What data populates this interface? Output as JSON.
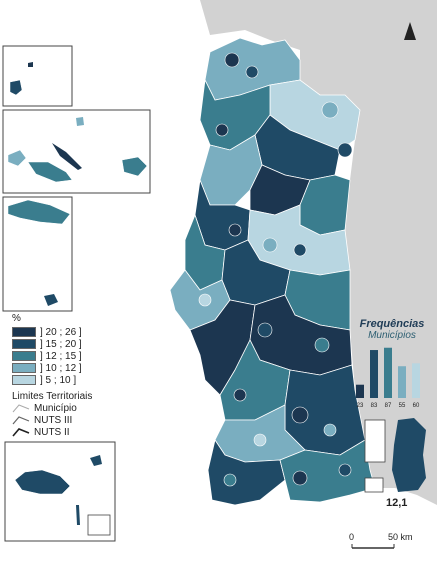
{
  "legend": {
    "title": "%",
    "classes": [
      {
        "label": "] 20 ; 26 ]",
        "color": "#1c3650"
      },
      {
        "label": "] 15 ; 20 ]",
        "color": "#1f4a66"
      },
      {
        "label": "] 12 ; 15 ]",
        "color": "#3a7d8e"
      },
      {
        "label": "] 10 ; 12 ]",
        "color": "#7aaec0"
      },
      {
        "label": "] 5 ; 10 ]",
        "color": "#b8d6e1"
      }
    ],
    "limits_title": "Limites Territoriais",
    "limits": [
      {
        "label": "Município"
      },
      {
        "label": "NUTS III"
      },
      {
        "label": "NUTS II"
      }
    ]
  },
  "frequencies": {
    "title": "Frequências",
    "subtitle": "Municípios",
    "chart_data": {
      "type": "bar",
      "categories": [
        "] 20 ; 26 ]",
        "] 15 ; 20 ]",
        "] 12 ; 15 ]",
        "] 10 ; 12 ]",
        "] 5 ; 10 ]"
      ],
      "values": [
        23,
        83,
        87,
        55,
        60
      ],
      "colors": [
        "#1c3650",
        "#1f4a66",
        "#3a7d8e",
        "#7aaec0",
        "#b8d6e1"
      ],
      "ylim": [
        0,
        90
      ]
    },
    "value_labels": [
      "23",
      "83",
      "87",
      "55",
      "60"
    ]
  },
  "national_value": "12,1",
  "north_arrow": "north-arrow-icon",
  "scale": {
    "start": "0",
    "end": "50 km"
  },
  "colors": {
    "sea": "#cfcfcf",
    "border": "#ffffff",
    "land_bg": "#ffffff"
  }
}
